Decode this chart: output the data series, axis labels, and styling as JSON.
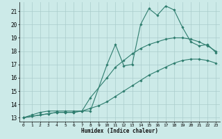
{
  "xlabel": "Humidex (Indice chaleur)",
  "bg_color": "#cceae8",
  "grid_color": "#aacccc",
  "line_color": "#2e7d6e",
  "xlim": [
    -0.5,
    23.5
  ],
  "ylim": [
    12.7,
    21.7
  ],
  "yticks": [
    13,
    14,
    15,
    16,
    17,
    18,
    19,
    20,
    21
  ],
  "xticks": [
    0,
    1,
    2,
    3,
    4,
    5,
    6,
    7,
    8,
    9,
    10,
    11,
    12,
    13,
    14,
    15,
    16,
    17,
    18,
    19,
    20,
    21,
    22,
    23
  ],
  "line1_x": [
    0,
    1,
    2,
    3,
    4,
    5,
    6,
    7,
    8,
    10,
    11,
    12,
    13,
    14,
    15,
    16,
    17,
    18,
    19,
    20,
    21,
    22,
    23
  ],
  "line1_y": [
    13.0,
    13.2,
    13.4,
    13.5,
    13.5,
    13.5,
    13.5,
    13.5,
    13.5,
    17.0,
    18.5,
    16.9,
    17.0,
    20.0,
    21.2,
    20.7,
    21.4,
    21.1,
    19.8,
    18.7,
    18.4,
    18.5,
    17.9
  ],
  "line2_x": [
    0,
    1,
    2,
    3,
    4,
    5,
    6,
    7,
    8,
    10,
    11,
    12,
    13,
    14,
    15,
    16,
    17,
    18,
    19,
    20,
    21,
    22,
    23
  ],
  "line2_y": [
    13.0,
    13.1,
    13.2,
    13.3,
    13.4,
    13.4,
    13.4,
    13.5,
    14.5,
    16.0,
    16.8,
    17.3,
    17.8,
    18.2,
    18.5,
    18.7,
    18.9,
    19.0,
    19.0,
    18.9,
    18.7,
    18.4,
    18.0
  ],
  "line3_x": [
    0,
    1,
    2,
    3,
    4,
    5,
    6,
    7,
    8,
    9,
    10,
    11,
    12,
    13,
    14,
    15,
    16,
    17,
    18,
    19,
    20,
    21,
    22,
    23
  ],
  "line3_y": [
    13.0,
    13.1,
    13.2,
    13.3,
    13.4,
    13.4,
    13.4,
    13.5,
    13.7,
    13.9,
    14.2,
    14.6,
    15.0,
    15.4,
    15.8,
    16.2,
    16.5,
    16.8,
    17.1,
    17.3,
    17.4,
    17.4,
    17.3,
    17.1
  ]
}
